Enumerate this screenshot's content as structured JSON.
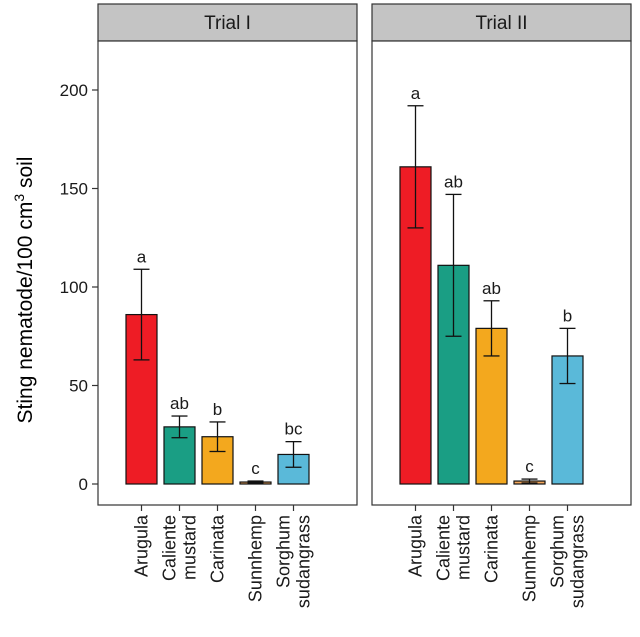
{
  "chart_data": {
    "type": "bar",
    "ylabel": "Sting nematode/100 cm",
    "ylabel_superscript": "3",
    "ylabel_suffix": " soil",
    "ylim": [
      0,
      225
    ],
    "yticks": [
      "0",
      "50",
      "100",
      "150",
      "200"
    ],
    "categories": [
      {
        "lines": [
          "Arugula"
        ]
      },
      {
        "lines": [
          "Caliente",
          "mustard"
        ]
      },
      {
        "lines": [
          "Carinata"
        ]
      },
      {
        "lines": [
          "Sunnhemp"
        ]
      },
      {
        "lines": [
          "Sorghum",
          "sudangrass"
        ]
      }
    ],
    "colors": [
      "#ee1c25",
      "#1a9e84",
      "#f3a81e",
      "#f2a65a",
      "#5ab9d9"
    ],
    "panels": [
      {
        "title": "Trial I",
        "values": [
          86,
          29,
          24,
          1,
          15
        ],
        "errors": [
          23,
          5.5,
          7.5,
          0.5,
          6.5
        ],
        "letters": [
          "a",
          "ab",
          "b",
          "c",
          "bc"
        ]
      },
      {
        "title": "Trial II",
        "values": [
          161,
          111,
          79,
          1.5,
          65
        ],
        "errors": [
          31,
          36,
          14,
          1,
          14
        ],
        "letters": [
          "a",
          "ab",
          "ab",
          "c",
          "b"
        ]
      }
    ]
  }
}
